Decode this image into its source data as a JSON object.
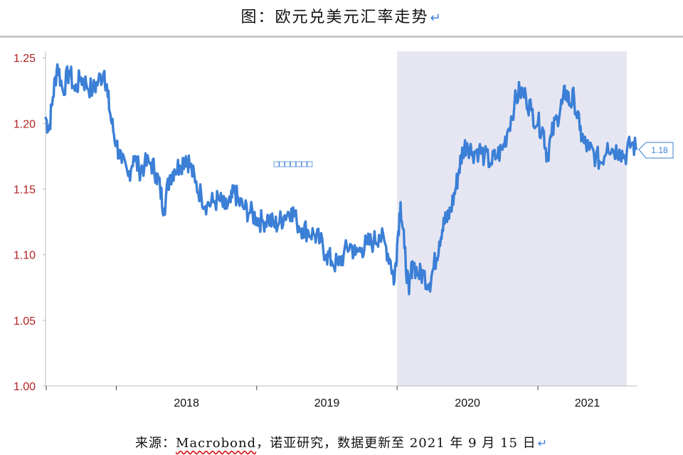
{
  "header": {
    "title": "图：欧元兑美元汇率走势",
    "return_mark": "↵"
  },
  "footer": {
    "prefix": "来源：",
    "brand": "Macrobond",
    "suffix": "，诺亚研究，数据更新至 2021 年 9 月 15 日",
    "return_mark": "↵"
  },
  "colors": {
    "series": "#3b7fd6",
    "shade": "#e6e6f2",
    "ytick": "#b22222",
    "axis": "#bbbbbb"
  },
  "chart_data": {
    "type": "line",
    "title": "",
    "xlabel": "",
    "ylabel": "",
    "ylim": [
      1.0,
      1.255
    ],
    "xlim": [
      "2017-07-01",
      "2021-09-15"
    ],
    "y_ticks": [
      "1.00",
      "1.05",
      "1.10",
      "1.15",
      "1.20",
      "1.25"
    ],
    "x_ticks": [
      "2018",
      "2019",
      "2020",
      "2021"
    ],
    "grid": false,
    "legend": "none",
    "annotations": {
      "end_value_label": "1.18",
      "shaded_period": [
        "2020-01-01",
        "2021-09-15"
      ],
      "garbled_label": "□□□□□□□"
    },
    "series": [
      {
        "name": "",
        "points": [
          [
            "2017-07-01",
            1.205
          ],
          [
            "2017-07-10",
            1.195
          ],
          [
            "2017-07-20",
            1.22
          ],
          [
            "2017-08-01",
            1.245
          ],
          [
            "2017-08-15",
            1.225
          ],
          [
            "2017-09-01",
            1.24
          ],
          [
            "2017-09-15",
            1.225
          ],
          [
            "2017-10-01",
            1.235
          ],
          [
            "2017-10-15",
            1.23
          ],
          [
            "2017-11-01",
            1.225
          ],
          [
            "2017-11-15",
            1.232
          ],
          [
            "2017-12-01",
            1.24
          ],
          [
            "2017-12-10",
            1.22
          ],
          [
            "2017-12-20",
            1.2
          ],
          [
            "2018-01-01",
            1.185
          ],
          [
            "2018-01-15",
            1.17
          ],
          [
            "2018-02-01",
            1.16
          ],
          [
            "2018-02-15",
            1.175
          ],
          [
            "2018-03-01",
            1.165
          ],
          [
            "2018-03-15",
            1.168
          ],
          [
            "2018-04-01",
            1.17
          ],
          [
            "2018-04-15",
            1.162
          ],
          [
            "2018-04-25",
            1.15
          ],
          [
            "2018-05-05",
            1.135
          ],
          [
            "2018-05-20",
            1.16
          ],
          [
            "2018-06-01",
            1.165
          ],
          [
            "2018-06-15",
            1.168
          ],
          [
            "2018-07-01",
            1.175
          ],
          [
            "2018-07-10",
            1.17
          ],
          [
            "2018-07-25",
            1.155
          ],
          [
            "2018-08-10",
            1.145
          ],
          [
            "2018-08-25",
            1.138
          ],
          [
            "2018-09-10",
            1.14
          ],
          [
            "2018-09-25",
            1.142
          ],
          [
            "2018-10-10",
            1.135
          ],
          [
            "2018-10-25",
            1.14
          ],
          [
            "2018-11-05",
            1.148
          ],
          [
            "2018-11-15",
            1.14
          ],
          [
            "2018-12-01",
            1.135
          ],
          [
            "2018-12-15",
            1.132
          ],
          [
            "2019-01-01",
            1.128
          ],
          [
            "2019-01-15",
            1.125
          ],
          [
            "2019-02-01",
            1.128
          ],
          [
            "2019-02-15",
            1.122
          ],
          [
            "2019-03-01",
            1.125
          ],
          [
            "2019-03-15",
            1.13
          ],
          [
            "2019-04-01",
            1.135
          ],
          [
            "2019-04-15",
            1.125
          ],
          [
            "2019-05-01",
            1.12
          ],
          [
            "2019-05-15",
            1.118
          ],
          [
            "2019-06-01",
            1.115
          ],
          [
            "2019-06-15",
            1.11
          ],
          [
            "2019-07-01",
            1.1
          ],
          [
            "2019-07-15",
            1.095
          ],
          [
            "2019-08-01",
            1.092
          ],
          [
            "2019-08-15",
            1.1
          ],
          [
            "2019-09-01",
            1.108
          ],
          [
            "2019-09-15",
            1.1
          ],
          [
            "2019-10-01",
            1.105
          ],
          [
            "2019-10-15",
            1.108
          ],
          [
            "2019-11-01",
            1.11
          ],
          [
            "2019-11-15",
            1.115
          ],
          [
            "2019-12-01",
            1.108
          ],
          [
            "2019-12-15",
            1.095
          ],
          [
            "2019-12-25",
            1.08
          ],
          [
            "2020-01-01",
            1.108
          ],
          [
            "2020-01-10",
            1.14
          ],
          [
            "2020-01-20",
            1.105
          ],
          [
            "2020-02-01",
            1.07
          ],
          [
            "2020-02-10",
            1.095
          ],
          [
            "2020-02-25",
            1.085
          ],
          [
            "2020-03-10",
            1.085
          ],
          [
            "2020-03-25",
            1.078
          ],
          [
            "2020-04-05",
            1.09
          ],
          [
            "2020-04-20",
            1.11
          ],
          [
            "2020-05-01",
            1.128
          ],
          [
            "2020-05-10",
            1.125
          ],
          [
            "2020-05-20",
            1.135
          ],
          [
            "2020-06-01",
            1.15
          ],
          [
            "2020-06-10",
            1.165
          ],
          [
            "2020-06-20",
            1.18
          ],
          [
            "2020-07-01",
            1.185
          ],
          [
            "2020-07-15",
            1.178
          ],
          [
            "2020-08-01",
            1.18
          ],
          [
            "2020-08-15",
            1.175
          ],
          [
            "2020-09-01",
            1.17
          ],
          [
            "2020-09-15",
            1.175
          ],
          [
            "2020-10-01",
            1.18
          ],
          [
            "2020-10-15",
            1.195
          ],
          [
            "2020-11-01",
            1.215
          ],
          [
            "2020-11-15",
            1.225
          ],
          [
            "2020-12-01",
            1.22
          ],
          [
            "2020-12-15",
            1.21
          ],
          [
            "2021-01-01",
            1.2
          ],
          [
            "2021-01-15",
            1.195
          ],
          [
            "2021-01-25",
            1.175
          ],
          [
            "2021-02-05",
            1.19
          ],
          [
            "2021-02-20",
            1.205
          ],
          [
            "2021-03-05",
            1.215
          ],
          [
            "2021-03-15",
            1.225
          ],
          [
            "2021-03-25",
            1.215
          ],
          [
            "2021-04-05",
            1.22
          ],
          [
            "2021-04-20",
            1.195
          ],
          [
            "2021-05-01",
            1.185
          ],
          [
            "2021-05-15",
            1.18
          ],
          [
            "2021-06-01",
            1.175
          ],
          [
            "2021-06-15",
            1.17
          ],
          [
            "2021-07-01",
            1.185
          ],
          [
            "2021-07-15",
            1.18
          ],
          [
            "2021-08-01",
            1.18
          ],
          [
            "2021-08-15",
            1.175
          ],
          [
            "2021-09-01",
            1.185
          ],
          [
            "2021-09-15",
            1.18
          ]
        ]
      }
    ]
  }
}
